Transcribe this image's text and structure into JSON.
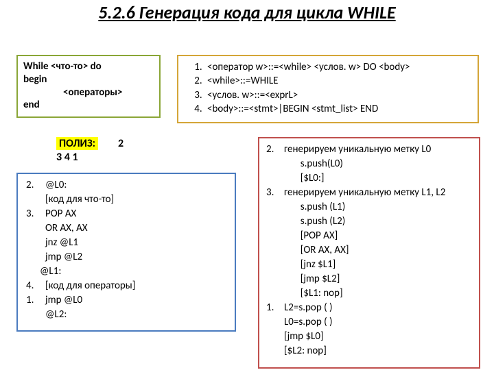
{
  "title": "5.2.6 Генерация кода для цикла WHILE",
  "while_box": {
    "border_color": "#8aa636",
    "l1a": "While ",
    "l1b": "<что-то>",
    "l1c": " do",
    "l2": "begin",
    "l3": "<операторы>",
    "l4": "end"
  },
  "grammar_box": {
    "border_color": "#d4a537",
    "items": [
      "<оператор w>::=<while> <услов. w> DO <body>",
      "<while>::=WHILE",
      "<услов. w>::=<exprL>",
      "<body>::=<stmt>|BEGIN <stmt_list> END"
    ]
  },
  "poliz": {
    "label": "ПОЛИЗ:",
    "seq_top": "2",
    "seq_bot": "3 4 1"
  },
  "code_left": {
    "border_color": "#4a7bbf",
    "rows": [
      {
        "n": "2.",
        "t": "@L0:"
      },
      {
        "n": "",
        "t": "[код для что-то]"
      },
      {
        "n": "3.",
        "t": "POP AX"
      },
      {
        "n": "",
        "t": "OR AX, AX"
      },
      {
        "n": "",
        "t": "jnz @L1"
      },
      {
        "n": "",
        "t": "jmp @L2"
      },
      {
        "n": "",
        "t": "@L1:",
        "noindent": true
      },
      {
        "n": "4.",
        "t": "[код для операторы]"
      },
      {
        "n": "1.",
        "t": "jmp @L0"
      },
      {
        "n": "",
        "t": "@L2:"
      }
    ]
  },
  "steps_box": {
    "border_color": "#c0504d",
    "rows": [
      {
        "n": "2.",
        "t": "генерируем уникальную метку L0"
      },
      {
        "n": "",
        "t": "       s.push(L0)"
      },
      {
        "n": "",
        "t": "       [$L0:]"
      },
      {
        "n": "3.",
        "t": "генерируем уникальную метку L1, L2"
      },
      {
        "n": "",
        "t": "       s.push (L1)"
      },
      {
        "n": "",
        "t": "       s.push (L2)"
      },
      {
        "n": "",
        "t": "       [POP AX]"
      },
      {
        "n": "",
        "t": "       [OR AX, AX]"
      },
      {
        "n": "",
        "t": "       [jnz $L1]"
      },
      {
        "n": "",
        "t": "       [jmp $L2]"
      },
      {
        "n": "",
        "t": "       [$L1: nop]"
      },
      {
        "n": "1.",
        "t": "L2=s.pop ( )"
      },
      {
        "n": "",
        "t": "L0=s.pop ( )"
      },
      {
        "n": "",
        "t": "[jmp $L0]"
      },
      {
        "n": "",
        "t": "[$L2: nop]"
      }
    ]
  }
}
